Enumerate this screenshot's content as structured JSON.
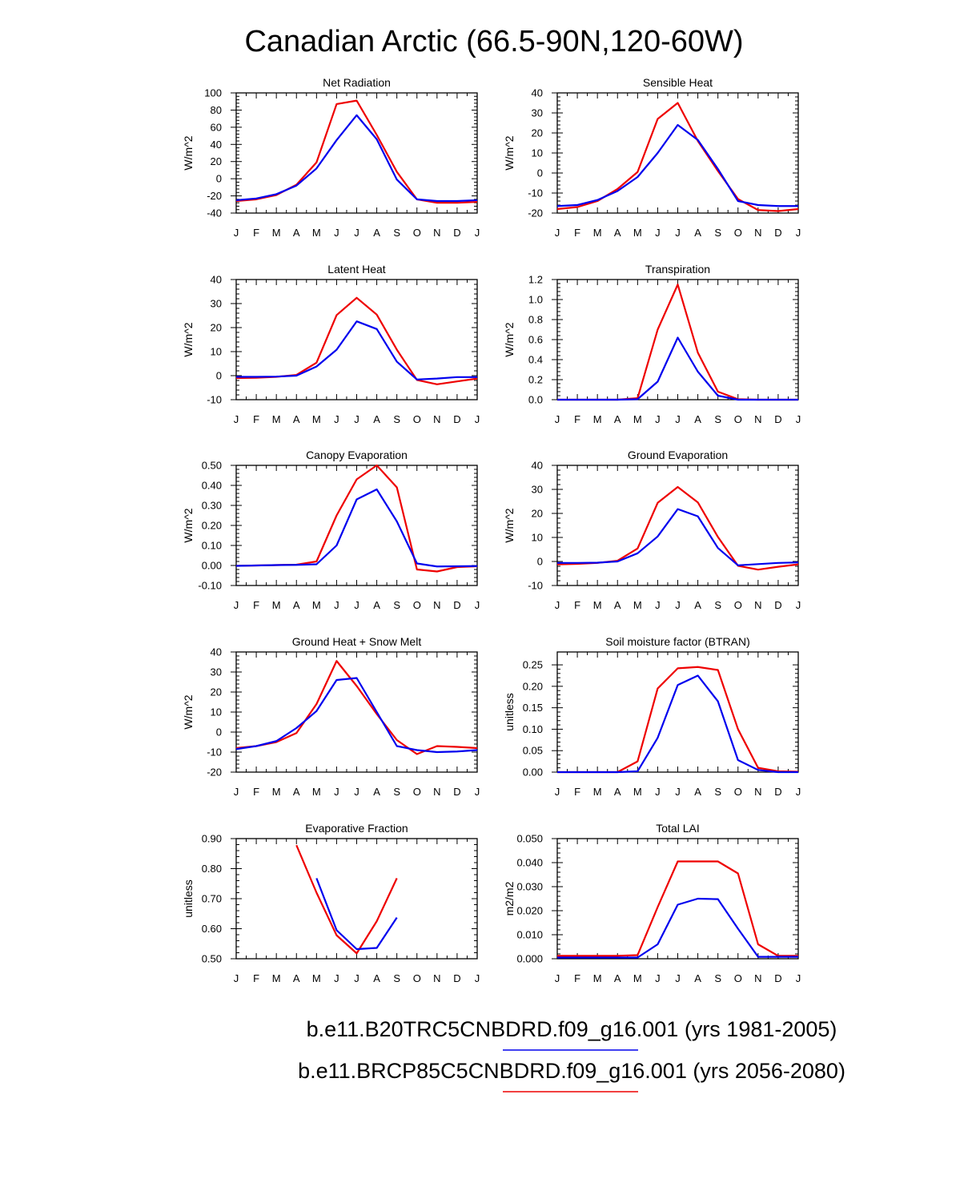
{
  "figure": {
    "title": "Canadian Arctic (66.5-90N,120-60W)",
    "series_colors": {
      "case1": "#0000ee",
      "case2": "#ee0000"
    },
    "legend": [
      {
        "name": "b.e11.B20TRC5CNBDRD.f09_g16.001 (yrs 1981-2005)",
        "color": "#0000ee"
      },
      {
        "name": "b.e11.BRCP85C5CNBDRD.f09_g16.001 (yrs 2056-2080)",
        "color": "#ee0000"
      }
    ]
  },
  "chart_data": [
    {
      "type": "line",
      "title": "Net Radiation",
      "ylabel": "W/m^2",
      "categories": [
        "J",
        "F",
        "M",
        "A",
        "M",
        "J",
        "J",
        "A",
        "S",
        "O",
        "N",
        "D",
        "J"
      ],
      "ylim": [
        -40,
        100
      ],
      "yticks": [
        "-40",
        "-20",
        "0",
        "20",
        "40",
        "60",
        "80",
        "100"
      ],
      "series": [
        {
          "name": "b.e11.B20TRC5CNBDRD.f09_g16.001 (yrs 1981-2005)",
          "color": "#0000ee",
          "values": [
            -25,
            -23,
            -18,
            -8,
            12,
            45,
            74,
            46,
            -1,
            -24,
            -26,
            -26,
            -25
          ]
        },
        {
          "name": "b.e11.BRCP85C5CNBDRD.f09_g16.001 (yrs 2056-2080)",
          "color": "#ee0000",
          "values": [
            -26,
            -24,
            -19,
            -7,
            19,
            87,
            91,
            51,
            8,
            -24,
            -28,
            -28,
            -27
          ]
        }
      ]
    },
    {
      "type": "line",
      "title": "Sensible Heat",
      "ylabel": "W/m^2",
      "categories": [
        "J",
        "F",
        "M",
        "A",
        "M",
        "J",
        "J",
        "A",
        "S",
        "O",
        "N",
        "D",
        "J"
      ],
      "ylim": [
        -20,
        40
      ],
      "yticks": [
        "-20",
        "-10",
        "0",
        "10",
        "20",
        "30",
        "40"
      ],
      "series": [
        {
          "name": "b.e11.B20TRC5CNBDRD.f09_g16.001 (yrs 1981-2005)",
          "color": "#0000ee",
          "values": [
            -16.5,
            -16,
            -13.5,
            -9,
            -2,
            10,
            24,
            16.5,
            2,
            -14,
            -16,
            -16.5,
            -16.5
          ]
        },
        {
          "name": "b.e11.BRCP85C5CNBDRD.f09_g16.001 (yrs 2056-2080)",
          "color": "#ee0000",
          "values": [
            -18,
            -17,
            -14,
            -8,
            0.5,
            27,
            35,
            16,
            1,
            -13,
            -18.5,
            -19,
            -18
          ]
        }
      ]
    },
    {
      "type": "line",
      "title": "Latent Heat",
      "ylabel": "W/m^2",
      "categories": [
        "J",
        "F",
        "M",
        "A",
        "M",
        "J",
        "J",
        "A",
        "S",
        "O",
        "N",
        "D",
        "J"
      ],
      "ylim": [
        -10,
        40
      ],
      "yticks": [
        "-10",
        "0",
        "10",
        "20",
        "30",
        "40"
      ],
      "series": [
        {
          "name": "b.e11.B20TRC5CNBDRD.f09_g16.001 (yrs 1981-2005)",
          "color": "#0000ee",
          "values": [
            -0.5,
            -0.5,
            -0.4,
            0,
            3.8,
            10.8,
            22.6,
            19.4,
            5.8,
            -1.6,
            -1.2,
            -0.6,
            -0.6
          ]
        },
        {
          "name": "b.e11.BRCP85C5CNBDRD.f09_g16.001 (yrs 2056-2080)",
          "color": "#ee0000",
          "values": [
            -1,
            -0.9,
            -0.5,
            0.3,
            5.4,
            25.2,
            32.4,
            25.4,
            10.8,
            -1.8,
            -3.6,
            -2.4,
            -1.2
          ]
        }
      ]
    },
    {
      "type": "line",
      "title": "Transpiration",
      "ylabel": "W/m^2",
      "categories": [
        "J",
        "F",
        "M",
        "A",
        "M",
        "J",
        "J",
        "A",
        "S",
        "O",
        "N",
        "D",
        "J"
      ],
      "ylim": [
        0,
        1.2
      ],
      "yticks": [
        "0.0",
        "0.2",
        "0.4",
        "0.6",
        "0.8",
        "1.0",
        "1.2"
      ],
      "series": [
        {
          "name": "b.e11.B20TRC5CNBDRD.f09_g16.001 (yrs 1981-2005)",
          "color": "#0000ee",
          "values": [
            0,
            0,
            0,
            0,
            0.005,
            0.18,
            0.62,
            0.28,
            0.04,
            0,
            0,
            0,
            0
          ]
        },
        {
          "name": "b.e11.BRCP85C5CNBDRD.f09_g16.001 (yrs 2056-2080)",
          "color": "#ee0000",
          "values": [
            0,
            0,
            0,
            0,
            0.015,
            0.7,
            1.15,
            0.47,
            0.08,
            0.005,
            0,
            0,
            0
          ]
        }
      ]
    },
    {
      "type": "line",
      "title": "Canopy Evaporation",
      "ylabel": "W/m^2",
      "categories": [
        "J",
        "F",
        "M",
        "A",
        "M",
        "J",
        "J",
        "A",
        "S",
        "O",
        "N",
        "D",
        "J"
      ],
      "ylim": [
        -0.1,
        0.5
      ],
      "yticks": [
        "-0.10",
        "0.00",
        "0.10",
        "0.20",
        "0.30",
        "0.40",
        "0.50"
      ],
      "series": [
        {
          "name": "b.e11.B20TRC5CNBDRD.f09_g16.001 (yrs 1981-2005)",
          "color": "#0000ee",
          "values": [
            -0.002,
            0,
            0.002,
            0.003,
            0.006,
            0.1,
            0.33,
            0.38,
            0.22,
            0.01,
            -0.005,
            -0.004,
            -0.003
          ]
        },
        {
          "name": "b.e11.BRCP85C5CNBDRD.f09_g16.001 (yrs 2056-2080)",
          "color": "#ee0000",
          "values": [
            -0.002,
            0,
            0.002,
            0.004,
            0.02,
            0.25,
            0.43,
            0.5,
            0.39,
            -0.02,
            -0.03,
            -0.008,
            -0.004
          ]
        }
      ]
    },
    {
      "type": "line",
      "title": "Ground Evaporation",
      "ylabel": "W/m^2",
      "categories": [
        "J",
        "F",
        "M",
        "A",
        "M",
        "J",
        "J",
        "A",
        "S",
        "O",
        "N",
        "D",
        "J"
      ],
      "ylim": [
        -10,
        40
      ],
      "yticks": [
        "-10",
        "0",
        "10",
        "20",
        "30",
        "40"
      ],
      "series": [
        {
          "name": "b.e11.B20TRC5CNBDRD.f09_g16.001 (yrs 1981-2005)",
          "color": "#0000ee",
          "values": [
            -0.6,
            -0.6,
            -0.5,
            0,
            3.4,
            10.4,
            21.8,
            18.8,
            5.6,
            -1.6,
            -1.1,
            -0.6,
            -0.4
          ]
        },
        {
          "name": "b.e11.BRCP85C5CNBDRD.f09_g16.001 (yrs 2056-2080)",
          "color": "#ee0000",
          "values": [
            -1.2,
            -1,
            -0.6,
            0.3,
            5.4,
            24.4,
            31,
            24.6,
            10.2,
            -1.8,
            -3.4,
            -2.2,
            -1.2
          ]
        }
      ]
    },
    {
      "type": "line",
      "title": "Ground Heat + Snow Melt",
      "ylabel": "W/m^2",
      "categories": [
        "J",
        "F",
        "M",
        "A",
        "M",
        "J",
        "J",
        "A",
        "S",
        "O",
        "N",
        "D",
        "J"
      ],
      "ylim": [
        -20,
        40
      ],
      "yticks": [
        "-20",
        "-10",
        "0",
        "10",
        "20",
        "30",
        "40"
      ],
      "series": [
        {
          "name": "b.e11.B20TRC5CNBDRD.f09_g16.001 (yrs 1981-2005)",
          "color": "#0000ee",
          "values": [
            -8.5,
            -7,
            -4.5,
            2,
            10.5,
            26,
            27,
            10,
            -7,
            -9,
            -10,
            -9.7,
            -9
          ]
        },
        {
          "name": "b.e11.BRCP85C5CNBDRD.f09_g16.001 (yrs 2056-2080)",
          "color": "#ee0000",
          "values": [
            -8,
            -7,
            -5,
            -0.5,
            14,
            35.5,
            23,
            9,
            -4,
            -11,
            -7,
            -7.4,
            -8
          ]
        }
      ]
    },
    {
      "type": "line",
      "title": "Soil moisture factor (BTRAN)",
      "ylabel": "unitless",
      "categories": [
        "J",
        "F",
        "M",
        "A",
        "M",
        "J",
        "J",
        "A",
        "S",
        "O",
        "N",
        "D",
        "J"
      ],
      "ylim": [
        0,
        0.28
      ],
      "yticks": [
        "0.00",
        "0.05",
        "0.10",
        "0.15",
        "0.20",
        "0.25"
      ],
      "series": [
        {
          "name": "b.e11.B20TRC5CNBDRD.f09_g16.001 (yrs 1981-2005)",
          "color": "#0000ee",
          "values": [
            0,
            0,
            0,
            0,
            0.002,
            0.08,
            0.203,
            0.225,
            0.165,
            0.028,
            0.005,
            0,
            0
          ]
        },
        {
          "name": "b.e11.BRCP85C5CNBDRD.f09_g16.001 (yrs 2056-2080)",
          "color": "#ee0000",
          "values": [
            0,
            0,
            0,
            0,
            0.025,
            0.195,
            0.242,
            0.245,
            0.238,
            0.1,
            0.01,
            0.002,
            0.001
          ]
        }
      ]
    },
    {
      "type": "line",
      "title": "Evaporative Fraction",
      "ylabel": "unitless",
      "categories": [
        "J",
        "F",
        "M",
        "A",
        "M",
        "J",
        "J",
        "A",
        "S",
        "O",
        "N",
        "D",
        "J"
      ],
      "ylim": [
        0.5,
        0.9
      ],
      "yticks": [
        "0.50",
        "0.60",
        "0.70",
        "0.80",
        "0.90"
      ],
      "series": [
        {
          "name": "b.e11.B20TRC5CNBDRD.f09_g16.001 (yrs 1981-2005)",
          "color": "#0000ee",
          "values": [
            null,
            null,
            null,
            null,
            0.768,
            0.595,
            0.532,
            0.536,
            0.637,
            null,
            null,
            null,
            null
          ]
        },
        {
          "name": "b.e11.BRCP85C5CNBDRD.f09_g16.001 (yrs 2056-2080)",
          "color": "#ee0000",
          "values": [
            null,
            null,
            null,
            0.878,
            0.72,
            0.578,
            0.518,
            0.625,
            0.768,
            null,
            null,
            null,
            null
          ]
        }
      ]
    },
    {
      "type": "line",
      "title": "Total LAI",
      "ylabel": "m2/m2",
      "categories": [
        "J",
        "F",
        "M",
        "A",
        "M",
        "J",
        "J",
        "A",
        "S",
        "O",
        "N",
        "D",
        "J"
      ],
      "ylim": [
        0,
        0.05
      ],
      "yticks": [
        "0.000",
        "0.010",
        "0.020",
        "0.030",
        "0.040",
        "0.050"
      ],
      "series": [
        {
          "name": "b.e11.B20TRC5CNBDRD.f09_g16.001 (yrs 1981-2005)",
          "color": "#0000ee",
          "values": [
            0.0005,
            0.0005,
            0.0005,
            0.0005,
            0.0005,
            0.006,
            0.0225,
            0.025,
            0.0248,
            0.0125,
            0.0008,
            0.0008,
            0.0008
          ]
        },
        {
          "name": "b.e11.BRCP85C5CNBDRD.f09_g16.001 (yrs 2056-2080)",
          "color": "#ee0000",
          "values": [
            0.0012,
            0.0012,
            0.0012,
            0.0012,
            0.0015,
            0.0215,
            0.0405,
            0.0405,
            0.0405,
            0.0355,
            0.006,
            0.0012,
            0.0012
          ]
        }
      ]
    }
  ]
}
